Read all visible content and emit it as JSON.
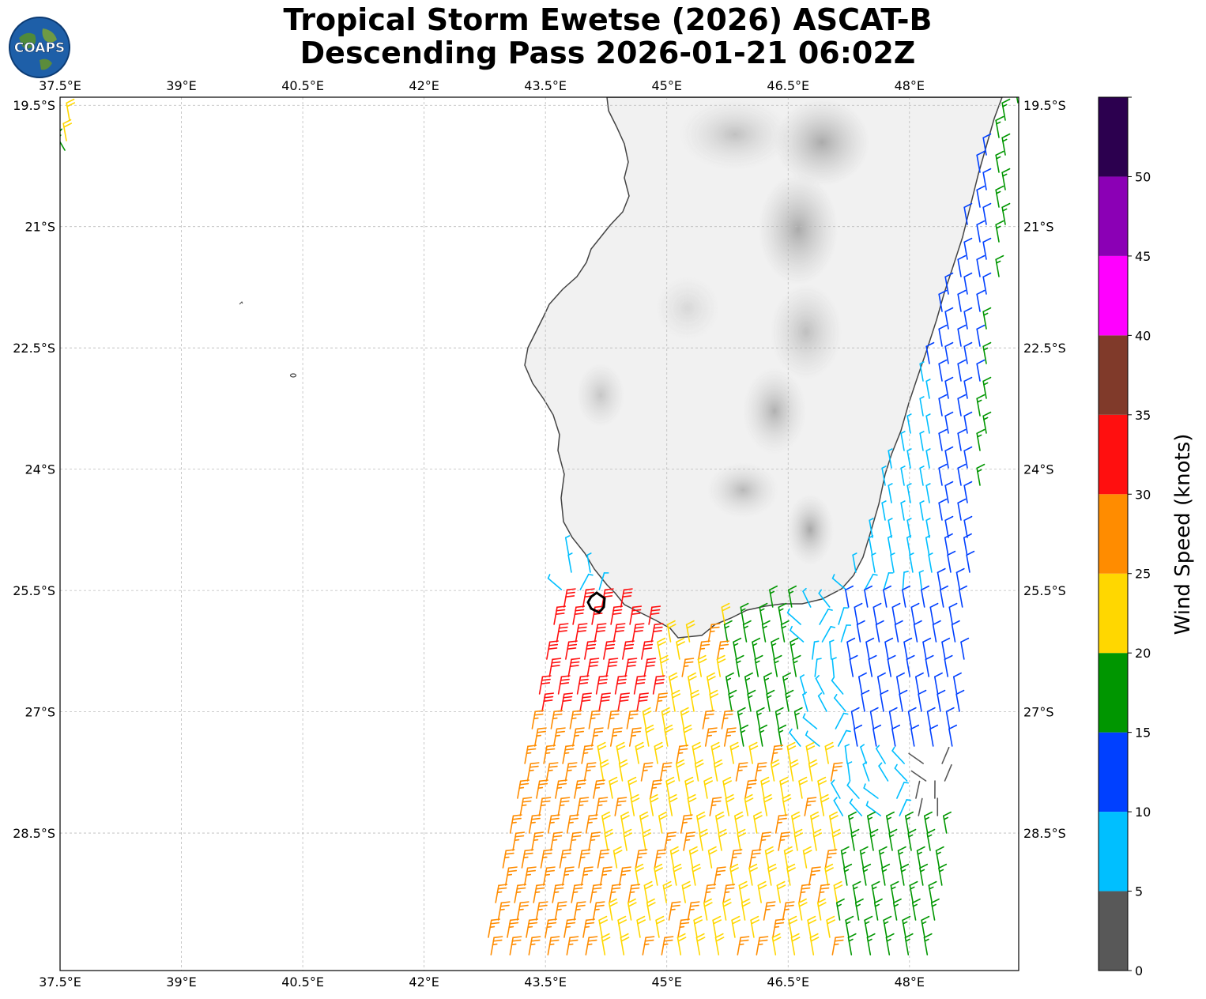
{
  "title": {
    "line1": "Tropical Storm Ewetse (2026) ASCAT-B",
    "line2": "Descending Pass 2026-01-21 06:02Z"
  },
  "logo": {
    "text": "COAPS",
    "icon": "globe-logo"
  },
  "map": {
    "lon_range": [
      37.5,
      49.35
    ],
    "lat_range": [
      -30.2,
      -19.4
    ],
    "lon_ticks": [
      "37.5°E",
      "39°E",
      "40.5°E",
      "42°E",
      "43.5°E",
      "45°E",
      "46.5°E",
      "48°E"
    ],
    "lat_ticks": [
      "19.5°S",
      "21°S",
      "22.5°S",
      "24°S",
      "25.5°S",
      "27°S",
      "28.5°S"
    ],
    "grid": true,
    "land_shading": "grayscale elevation",
    "coastline_color": "#444444",
    "storm_center_marker": {
      "lon": 44.1,
      "lat": -25.3
    }
  },
  "colorbar": {
    "label": "Wind Speed (knots)",
    "tick_labels": [
      "0",
      "5",
      "10",
      "15",
      "20",
      "25",
      "30",
      "35",
      "40",
      "45",
      "50"
    ],
    "bins": [
      {
        "min": 0,
        "max": 5,
        "color": "#585858"
      },
      {
        "min": 5,
        "max": 10,
        "color": "#00bfff"
      },
      {
        "min": 10,
        "max": 15,
        "color": "#0040ff"
      },
      {
        "min": 15,
        "max": 20,
        "color": "#009600"
      },
      {
        "min": 20,
        "max": 25,
        "color": "#ffd700"
      },
      {
        "min": 25,
        "max": 30,
        "color": "#ff8c00"
      },
      {
        "min": 30,
        "max": 35,
        "color": "#ff0f0f"
      },
      {
        "min": 35,
        "max": 40,
        "color": "#803a2a"
      },
      {
        "min": 40,
        "max": 45,
        "color": "#ff00ff"
      },
      {
        "min": 45,
        "max": 50,
        "color": "#8b00b5"
      },
      {
        "min": 50,
        "max": 55,
        "color": "#2c004f"
      }
    ]
  }
}
